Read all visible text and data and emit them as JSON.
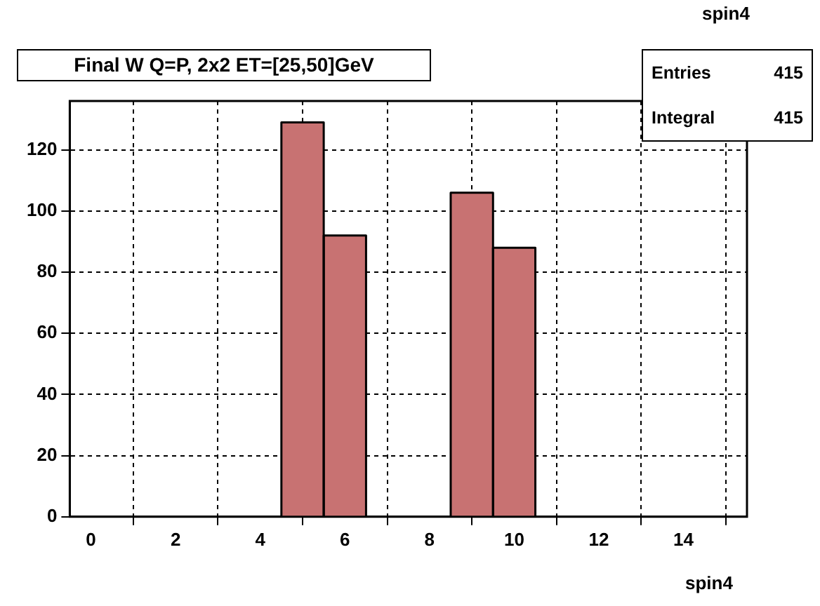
{
  "chart_data": {
    "type": "histogram",
    "title": "Final W Q=P, 2x2 ET=[25,50]GeV",
    "xlabel": "spin4",
    "bins": [
      -0.5,
      0.5,
      1.5,
      2.5,
      3.5,
      4.5,
      5.5,
      6.5,
      7.5,
      8.5,
      9.5,
      10.5,
      11.5,
      12.5,
      13.5,
      14.5,
      15.5
    ],
    "values": [
      0,
      0,
      0,
      0,
      0,
      129,
      92,
      0,
      0,
      106,
      88,
      0,
      0,
      0,
      0,
      0
    ],
    "color": "#c87272",
    "xlim": [
      -0.5,
      15.5
    ],
    "xticks": [
      0,
      2,
      4,
      6,
      8,
      10,
      12,
      14
    ],
    "ylim": [
      0,
      136
    ],
    "yticks": [
      0,
      20,
      40,
      60,
      80,
      100,
      120
    ],
    "grid": true,
    "legend": false,
    "annotations": [
      "spin4",
      "Entries",
      "415",
      "Integral",
      "415"
    ]
  }
}
